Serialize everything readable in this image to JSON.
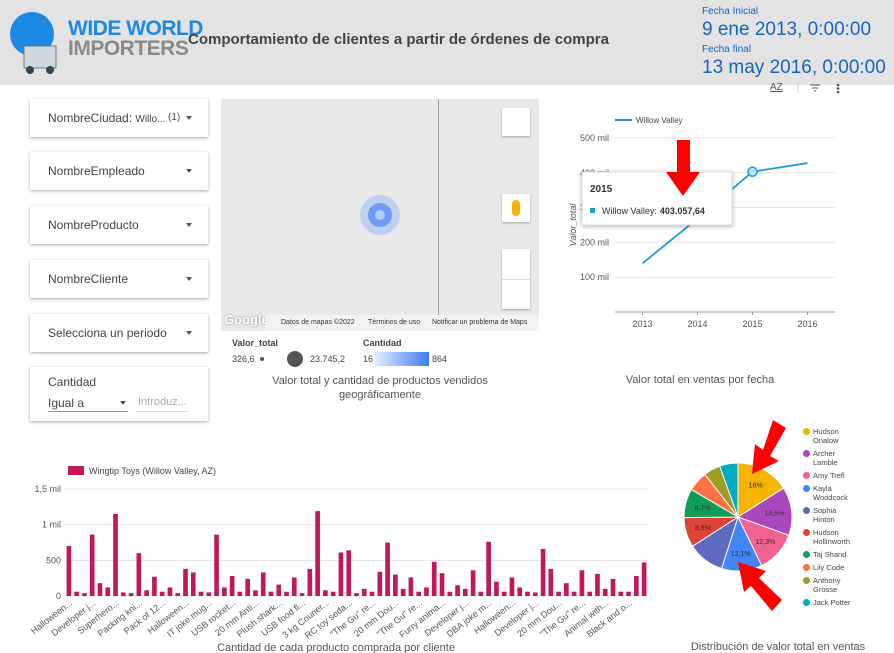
{
  "header": {
    "logo_top": "WIDE WORLD",
    "logo_bottom": "IMPORTERS",
    "title": "Comportamiento de clientes a partir de órdenes de compra",
    "start_label": "Fecha Inicial",
    "start_value": "9 ene 2013, 0:00:00",
    "end_label": "Fecha final",
    "end_value": "13 may 2016, 0:00:00",
    "sort_icon": "AZ"
  },
  "filters": {
    "city": {
      "label": "NombreCiudad:",
      "value": "Willo...",
      "count": "(1)"
    },
    "employee": "NombreEmpleado",
    "product": "NombreProducto",
    "customer": "NombreCliente",
    "period": "Selecciona un periodo",
    "quantity": {
      "label": "Cantidad",
      "operator": "Igual a",
      "placeholder": "Introduz..."
    }
  },
  "map": {
    "google": "Google",
    "data": "Datos de mapas ©2022",
    "terms": "Términos de uso",
    "report": "Notificar un problema de Maps",
    "size_legend": {
      "title": "Valor_total",
      "min": "326,6",
      "max": "23.745,2"
    },
    "color_legend": {
      "title": "Cantidad",
      "min": "16",
      "max": "864"
    },
    "caption": "Valor total y cantidad de productos vendidos geográficamente"
  },
  "chart_data": [
    {
      "type": "line",
      "caption": "Valor total en ventas por fecha",
      "y_label": "Valor_total",
      "x": [
        2013,
        2014,
        2015,
        2016
      ],
      "xlim": [
        2012.5,
        2016.5
      ],
      "xticks": [
        2013,
        2014,
        2015,
        2016
      ],
      "series": [
        {
          "name": "Willow Valley",
          "color": "#1a9ddb",
          "values": [
            140000,
            268000,
            403057.64,
            428000
          ],
          "value_labels": [
            null,
            null,
            "403.057,64",
            null
          ]
        }
      ],
      "ylim": [
        0,
        500000
      ],
      "yticks": [
        {
          "value": 100000,
          "label": "100 mil"
        },
        {
          "value": 200000,
          "label": "200 mil"
        },
        {
          "value": 300000,
          "label": "300 mil"
        },
        {
          "value": 400000,
          "label": "400 mil"
        },
        {
          "value": 500000,
          "label": "500 mil"
        }
      ],
      "grid": true,
      "legend": "top-left",
      "tooltip": {
        "series_label": "Willow Valley:"
      }
    },
    {
      "type": "bar",
      "caption": "Cantidad de cada producto comprada por cliente",
      "legend": "top-left",
      "categories": [
        "Halloween...",
        null,
        null,
        "Developer j...",
        null,
        null,
        "Superhero...",
        null,
        null,
        "Packing kni...",
        null,
        null,
        "Pack of 12...",
        null,
        null,
        "Halloween...",
        null,
        null,
        "IT joke mug...",
        null,
        null,
        "USB rocket...",
        null,
        null,
        "20 mm Anti...",
        null,
        null,
        "Plush shark...",
        null,
        null,
        "USB food fl...",
        null,
        null,
        "3 kg Courier...",
        null,
        null,
        "RC toy seda...",
        null,
        null,
        "\"The Gu\" re...",
        null,
        null,
        "20 mm Dou...",
        null,
        null,
        "\"The Gu\" re...",
        null,
        null,
        "Furry anima...",
        null,
        null,
        "Developer j...",
        null,
        null,
        "DBA joke m...",
        null,
        null,
        "Halloween...",
        null,
        null,
        "Developer j...",
        null,
        null,
        "20 mm Dou...",
        null,
        null,
        "\"The Gu\" re...",
        null,
        null,
        "Animal with...",
        null,
        null,
        "Black and o...",
        null,
        null
      ],
      "series": [
        {
          "name": "Wingtip Toys (Willow Valley, AZ)",
          "color": "#c2185b",
          "values": [
            700,
            60,
            40,
            860,
            180,
            120,
            1150,
            50,
            40,
            600,
            80,
            270,
            60,
            120,
            40,
            380,
            330,
            60,
            50,
            860,
            120,
            280,
            60,
            240,
            80,
            330,
            60,
            160,
            60,
            260,
            40,
            380,
            1190,
            80,
            60,
            610,
            640,
            40,
            100,
            60,
            340,
            750,
            300,
            100,
            260,
            60,
            120,
            480,
            320,
            60,
            150,
            100,
            360,
            60,
            760,
            200,
            60,
            260,
            120,
            60,
            50,
            660,
            380,
            60,
            180,
            60,
            360,
            60,
            310,
            100,
            240,
            60,
            60,
            280,
            470
          ]
        }
      ],
      "ylim": [
        0,
        1500
      ],
      "yticks": [
        0,
        500,
        {
          "value": 1000,
          "label": "1 mil"
        },
        {
          "value": 1500,
          "label": "1,5 mil"
        }
      ],
      "grid": true
    },
    {
      "type": "pie",
      "caption": "Distribución de valor total en ventas",
      "legend": "right",
      "categories": [
        "Hudson Onalow",
        "Archer Lamble",
        "Amy Trefl",
        "Kayla Woodcock",
        "Sophia Hinton",
        "Hudson Hollinworth",
        "Taj Shand",
        "Lily Code",
        "Anthony Grosse",
        "Jack Potter"
      ],
      "values": [
        16,
        14.5,
        12.3,
        12.1,
        11,
        8.9,
        8.7,
        6,
        5,
        5.5
      ],
      "value_labels": [
        "16%",
        "14,5%",
        "12,3%",
        "12,1%",
        null,
        "8,9%",
        "8,7%",
        null,
        null,
        null
      ],
      "colors": [
        "#f4b400",
        "#ab47bc",
        "#f06292",
        "#4285f4",
        "#5c6bc0",
        "#db4437",
        "#0f9d58",
        "#ff7043",
        "#9e9d24",
        "#00acc1"
      ]
    }
  ]
}
